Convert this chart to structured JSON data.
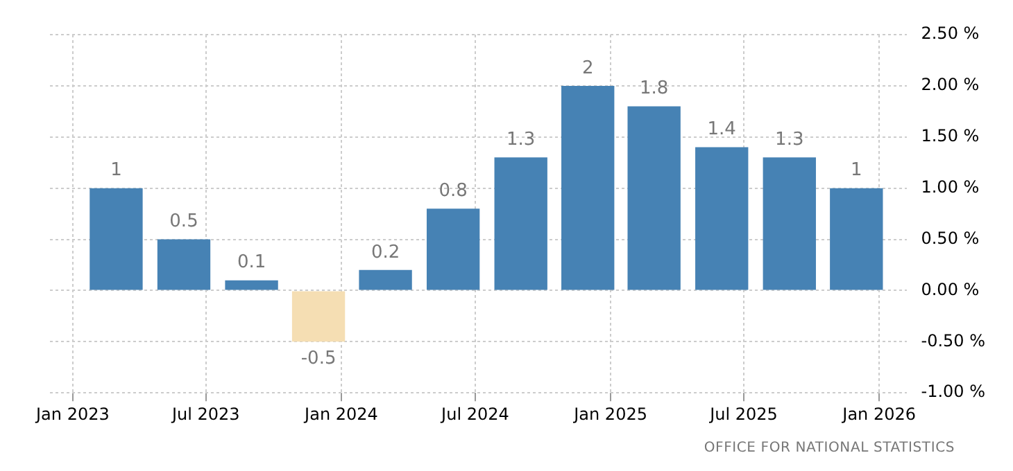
{
  "chart_data": {
    "type": "bar",
    "x": [
      "2023-03-01",
      "2023-06-01",
      "2023-09-01",
      "2023-12-01",
      "2024-03-01",
      "2024-06-01",
      "2024-09-01",
      "2024-12-01",
      "2025-03-01",
      "2025-06-01",
      "2025-09-01",
      "2025-12-01"
    ],
    "values": [
      1,
      0.5,
      0.1,
      -0.5,
      0.2,
      0.8,
      1.3,
      2,
      1.8,
      1.4,
      1.3,
      1
    ],
    "colors": [
      "#4682b4",
      "#4682b4",
      "#4682b4",
      "#f5deb3",
      "#4682b4",
      "#4682b4",
      "#4682b4",
      "#4682b4",
      "#4682b4",
      "#4682b4",
      "#4682b4",
      "#4682b4"
    ],
    "data_labels": true,
    "xlim": [
      "2022-12-01",
      "2026-02-08"
    ],
    "xticks": [
      {
        "value": "2023-01",
        "label": "Jan 2023"
      },
      {
        "value": "2023-07",
        "label": "Jul 2023"
      },
      {
        "value": "2024-01",
        "label": "Jan 2024"
      },
      {
        "value": "2024-07",
        "label": "Jul 2024"
      },
      {
        "value": "2025-01",
        "label": "Jan 2025"
      },
      {
        "value": "2025-07",
        "label": "Jul 2025"
      },
      {
        "value": "2026-01",
        "label": "Jan 2026"
      }
    ],
    "ylim": [
      -1,
      2.5
    ],
    "yticks": [
      {
        "value": -1,
        "label": "-1.00 %"
      },
      {
        "value": -0.5,
        "label": "-0.50 %"
      },
      {
        "value": 0,
        "label": "0.00 %"
      },
      {
        "value": 0.5,
        "label": "0.50 %"
      },
      {
        "value": 1,
        "label": "1.00 %"
      },
      {
        "value": 1.5,
        "label": "1.50 %"
      },
      {
        "value": 2,
        "label": "2.00 %"
      },
      {
        "value": 2.5,
        "label": "2.50 %"
      }
    ],
    "grid": true,
    "legend": false,
    "annotations": [
      "OFFICE FOR NATIONAL STATISTICS"
    ]
  }
}
